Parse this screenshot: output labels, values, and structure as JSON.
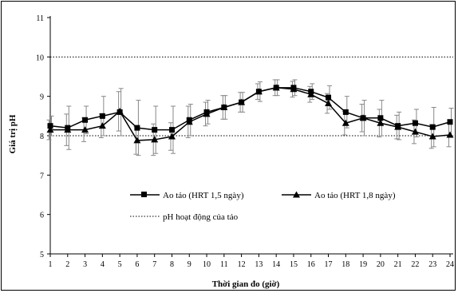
{
  "chart_data": {
    "type": "line",
    "xlabel": "Thời gian đo (giờ)",
    "ylabel": "Giá trị pH",
    "ylim": [
      5,
      11
    ],
    "yticks": [
      5,
      6,
      7,
      8,
      9,
      10,
      11
    ],
    "x": [
      1,
      2,
      3,
      4,
      5,
      6,
      7,
      8,
      9,
      10,
      11,
      12,
      13,
      14,
      15,
      16,
      17,
      18,
      19,
      20,
      21,
      22,
      23,
      24
    ],
    "grid": false,
    "legend_position": "lower-center",
    "series": [
      {
        "name": "Ao tảo (HRT 1,5 ngày)",
        "marker": "square",
        "color": "#000000",
        "values": [
          8.25,
          8.2,
          8.4,
          8.5,
          8.6,
          8.2,
          8.15,
          8.15,
          8.4,
          8.6,
          8.72,
          8.85,
          9.12,
          9.22,
          9.22,
          9.12,
          8.97,
          8.6,
          8.45,
          8.45,
          8.25,
          8.32,
          8.22,
          8.35
        ],
        "errors": [
          0.25,
          0.55,
          0.35,
          0.5,
          0.6,
          0.7,
          0.6,
          0.6,
          0.4,
          0.3,
          0.3,
          0.25,
          0.25,
          0.2,
          0.2,
          0.2,
          0.3,
          0.4,
          0.45,
          0.45,
          0.35,
          0.35,
          0.5,
          0.35
        ]
      },
      {
        "name": "Ao tảo (HRT 1,8 ngày)",
        "marker": "triangle",
        "color": "#000000",
        "values": [
          8.15,
          8.15,
          8.15,
          8.25,
          8.62,
          7.88,
          7.9,
          7.98,
          8.35,
          8.55,
          8.72,
          8.85,
          9.12,
          9.22,
          9.18,
          9.05,
          8.82,
          8.32,
          8.45,
          8.32,
          8.22,
          8.1,
          7.98,
          8.02
        ],
        "errors": [
          0.25,
          0.4,
          0.3,
          0.3,
          0.5,
          0.35,
          0.4,
          0.35,
          0.4,
          0.3,
          0.3,
          0.25,
          0.2,
          0.2,
          0.2,
          0.2,
          0.25,
          0.3,
          0.35,
          0.35,
          0.3,
          0.3,
          0.3,
          0.3
        ]
      },
      {
        "name": "pH hoạt động của tảo",
        "style": "dotted",
        "color": "#000000",
        "values_constant": [
          8,
          10
        ]
      }
    ]
  }
}
